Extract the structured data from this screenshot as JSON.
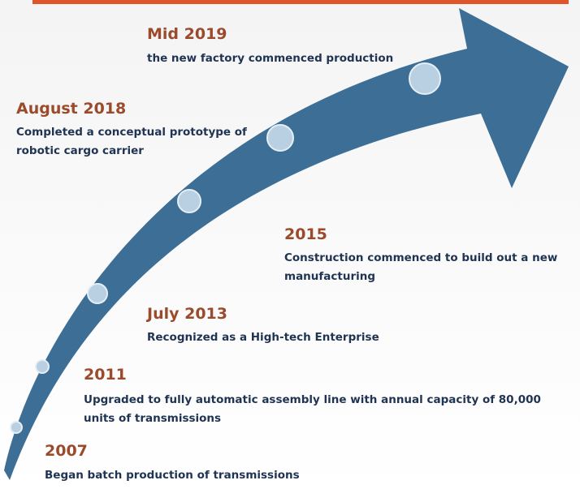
{
  "milestones": [
    {
      "year": "2007",
      "description": [
        "Began batch production of transmissions"
      ]
    },
    {
      "year": "2011",
      "description": [
        "Upgraded to fully automatic assembly line with annual capacity of 80,000",
        "units of transmissions"
      ]
    },
    {
      "year": "July 2013",
      "description": [
        "Recognized as a High-tech Enterprise"
      ]
    },
    {
      "year": "2015",
      "description": [
        "Construction commenced to build out a new",
        "manufacturing"
      ]
    },
    {
      "year": "August 2018",
      "description": [
        "Completed a conceptual prototype of",
        "robotic cargo carrier"
      ]
    },
    {
      "year": "Mid 2019",
      "description": [
        "the new factory commenced production"
      ]
    }
  ]
}
